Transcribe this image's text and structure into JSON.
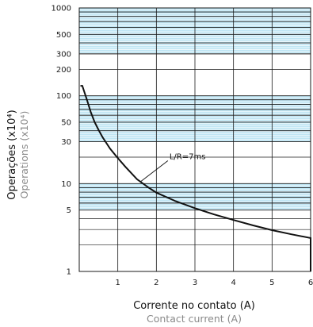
{
  "chart_data": {
    "type": "line",
    "x_label": "Corrente no contato (A)",
    "x_label_secondary": "Contact current (A)",
    "y_label": "Operações (x10⁴)",
    "y_label_secondary": "Operations (x10⁴)",
    "x_ticks": [
      "1",
      "2",
      "3",
      "4",
      "5",
      "6"
    ],
    "y_ticks": [
      "1",
      "5",
      "10",
      "30",
      "50",
      "100",
      "200",
      "300",
      "500",
      "1000"
    ],
    "xlim": [
      0,
      6
    ],
    "ylim": [
      1,
      1000
    ],
    "y_scale": "log",
    "grid": true,
    "shaded_bands": [
      [
        5,
        10
      ],
      [
        30,
        100
      ],
      [
        300,
        1000
      ]
    ],
    "series": [
      {
        "annotation": "L/R=7ms",
        "x": [
          0.03,
          0.08,
          0.12,
          0.2,
          0.3,
          0.4,
          0.5,
          0.6,
          0.8,
          1.0,
          1.2,
          1.5,
          1.8,
          2.0,
          2.5,
          3.0,
          3.5,
          4.0,
          4.5,
          5.0,
          5.5,
          6.0
        ],
        "y": [
          130,
          130,
          115,
          90,
          65,
          50,
          41,
          34,
          25,
          19.5,
          15.5,
          11.2,
          9.0,
          7.9,
          6.3,
          5.25,
          4.45,
          3.85,
          3.35,
          2.95,
          2.65,
          2.4
        ]
      }
    ],
    "colors": {
      "band_fill": "#bfe6f4",
      "band_line": "#1aa6d8",
      "grid": "#1a1a1a",
      "curve": "#111111"
    }
  }
}
